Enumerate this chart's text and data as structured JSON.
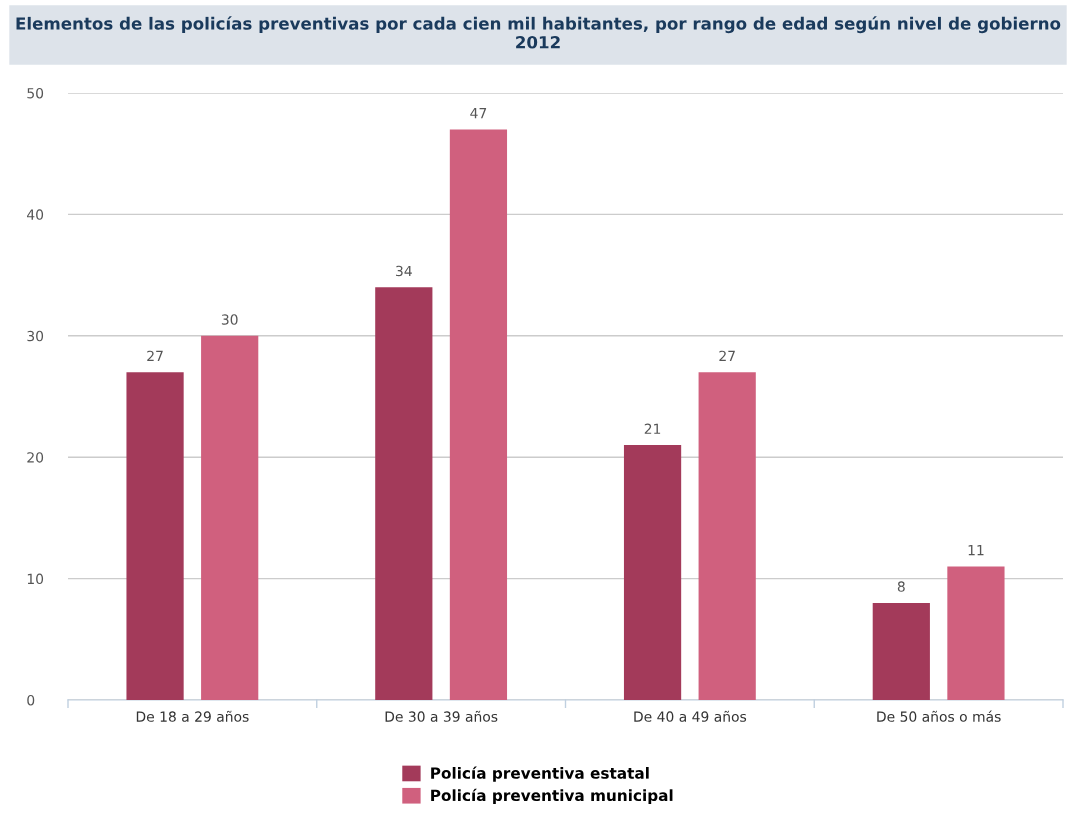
{
  "chart_data": {
    "type": "bar",
    "title": "Elementos de las policías preventivas por cada cien mil habitantes, por rango de edad según nivel de gobierno 2012",
    "categories": [
      "De 18 a 29 años",
      "De 30 a 39 años",
      "De 40 a 49 años",
      "De 50 años o más"
    ],
    "series": [
      {
        "name": "Policía preventiva estatal",
        "color": "#a33a5a",
        "values": [
          27,
          34,
          21,
          8
        ]
      },
      {
        "name": "Policía preventiva municipal",
        "color": "#d0607e",
        "values": [
          30,
          47,
          27,
          11
        ]
      }
    ],
    "ylim": [
      0,
      50
    ],
    "yticks": [
      0,
      10,
      20,
      30,
      40,
      50
    ],
    "grid": "y",
    "legend": "bottom",
    "data_labels": true
  }
}
